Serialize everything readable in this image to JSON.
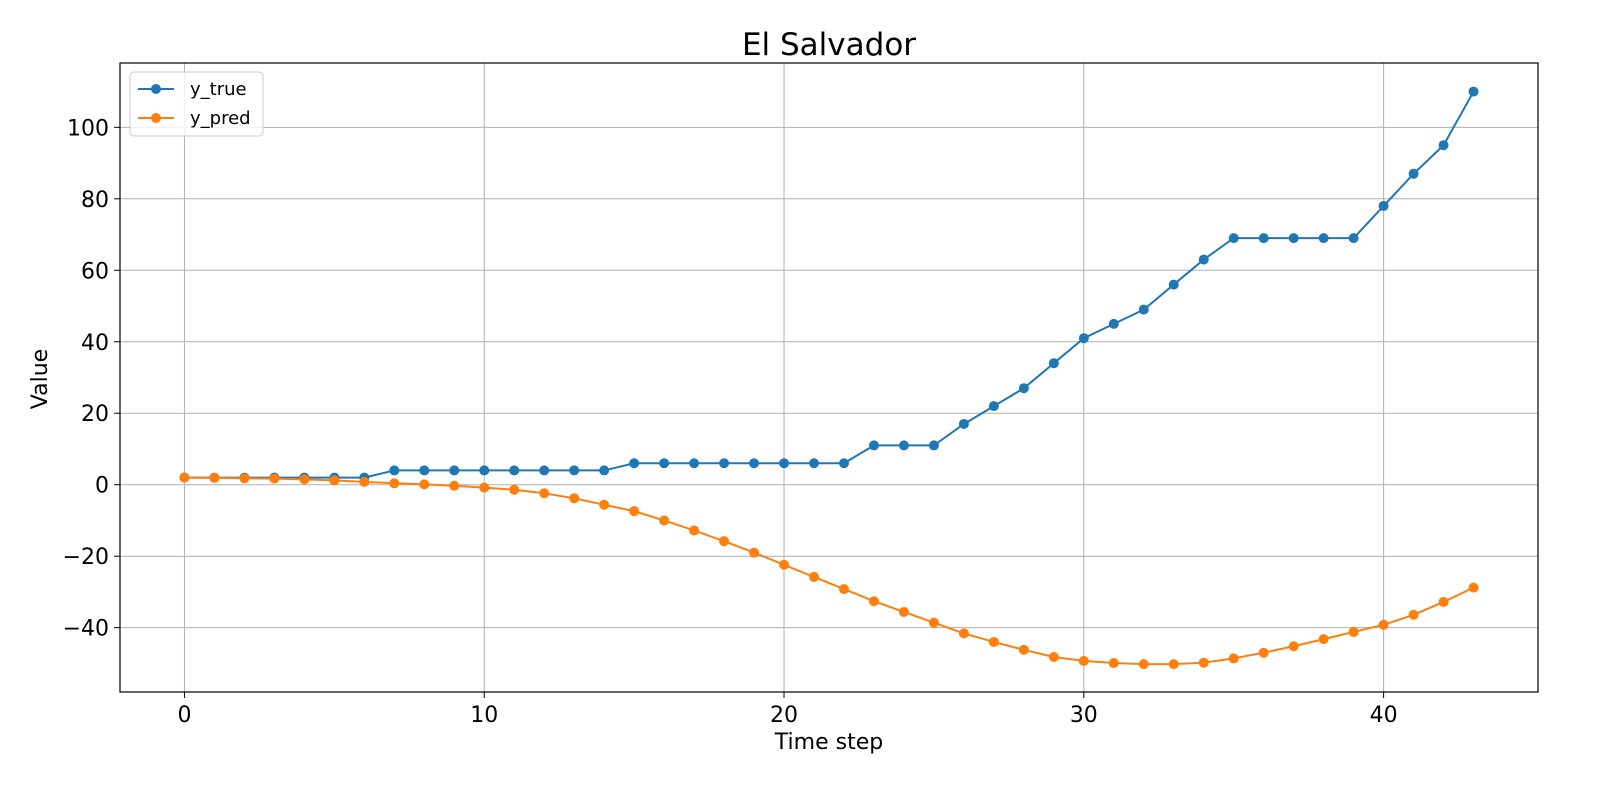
{
  "chart_data": {
    "type": "line",
    "title": "El Salvador",
    "xlabel": "Time step",
    "ylabel": "Value",
    "xlim": [
      -2.15,
      45.15
    ],
    "ylim": [
      -58.0,
      118.0
    ],
    "xticks": [
      0,
      10,
      20,
      30,
      40
    ],
    "yticks": [
      -40,
      -20,
      0,
      20,
      40,
      60,
      80,
      100
    ],
    "grid": true,
    "legend": "upper left",
    "x": [
      0,
      1,
      2,
      3,
      4,
      5,
      6,
      7,
      8,
      9,
      10,
      11,
      12,
      13,
      14,
      15,
      16,
      17,
      18,
      19,
      20,
      21,
      22,
      23,
      24,
      25,
      26,
      27,
      28,
      29,
      30,
      31,
      32,
      33,
      34,
      35,
      36,
      37,
      38,
      39,
      40,
      41,
      42,
      43
    ],
    "series": [
      {
        "name": "y_true",
        "color": "#1f77b4",
        "values": [
          2,
          2,
          2,
          2,
          2,
          2,
          2,
          4,
          4,
          4,
          4,
          4,
          4,
          4,
          4,
          6,
          6,
          6,
          6,
          6,
          6,
          6,
          6,
          11,
          11,
          11,
          17,
          22,
          27,
          34,
          41,
          45,
          49,
          56,
          63,
          69,
          69,
          69,
          69,
          69,
          78,
          87,
          95,
          110
        ]
      },
      {
        "name": "y_pred",
        "color": "#ff7f0e",
        "values": [
          2,
          1.9,
          1.8,
          1.7,
          1.5,
          1.2,
          0.8,
          0.4,
          0.1,
          -0.3,
          -0.8,
          -1.4,
          -2.4,
          -3.8,
          -5.6,
          -7.4,
          -10.0,
          -12.8,
          -15.8,
          -19.0,
          -22.4,
          -25.8,
          -29.2,
          -32.6,
          -35.6,
          -38.6,
          -41.6,
          -44.0,
          -46.2,
          -48.2,
          -49.3,
          -49.9,
          -50.2,
          -50.2,
          -49.8,
          -48.6,
          -47.0,
          -45.2,
          -43.2,
          -41.2,
          -39.2,
          -36.4,
          -32.8,
          -28.8
        ]
      }
    ]
  }
}
